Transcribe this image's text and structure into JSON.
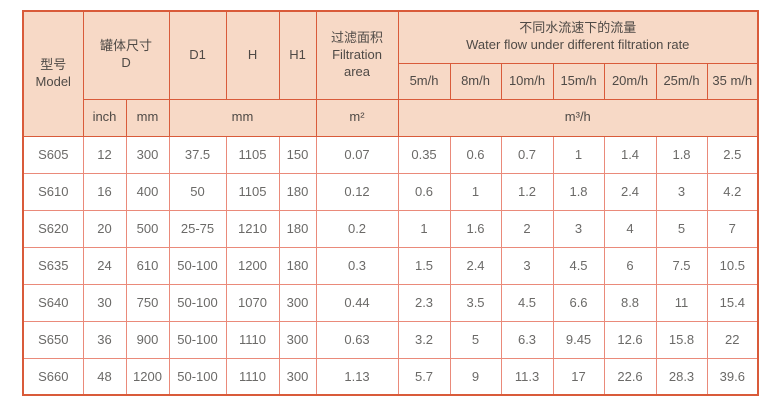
{
  "colors": {
    "page_bg": "#ffffff",
    "header_bg": "#f7d9c6",
    "strong_border": "#d95b3a",
    "light_border": "#ea8a7a",
    "header_text": "#4f4a46",
    "data_text": "#6b6a68"
  },
  "table": {
    "header": {
      "model_zh": "型号",
      "model_en": "Model",
      "tank_zh": "罐体尺寸",
      "tank_en": "D",
      "d1": "D1",
      "h": "H",
      "h1": "H1",
      "filtration_zh": "过滤面积",
      "filtration_en_line1": "Filtration",
      "filtration_en_line2": "area",
      "waterflow_zh": "不同水流速下的流量",
      "waterflow_en": "Water flow under different filtration rate",
      "rates": [
        "5m/h",
        "8m/h",
        "10m/h",
        "15m/h",
        "20m/h",
        "25m/h",
        "35 m/h"
      ],
      "unit_inch": "inch",
      "unit_mm_d": "mm",
      "unit_mm_dims": "mm",
      "unit_area": "m²",
      "unit_flow": "m³/h"
    },
    "rows": [
      {
        "model": "S605",
        "cells": [
          "12",
          "300",
          "37.5",
          "1105",
          "150",
          "0.07",
          "0.35",
          "0.6",
          "0.7",
          "1",
          "1.4",
          "1.8",
          "2.5"
        ]
      },
      {
        "model": "S610",
        "cells": [
          "16",
          "400",
          "50",
          "1105",
          "180",
          "0.12",
          "0.6",
          "1",
          "1.2",
          "1.8",
          "2.4",
          "3",
          "4.2"
        ]
      },
      {
        "model": "S620",
        "cells": [
          "20",
          "500",
          "25-75",
          "1210",
          "180",
          "0.2",
          "1",
          "1.6",
          "2",
          "3",
          "4",
          "5",
          "7"
        ]
      },
      {
        "model": "S635",
        "cells": [
          "24",
          "610",
          "50-100",
          "1200",
          "180",
          "0.3",
          "1.5",
          "2.4",
          "3",
          "4.5",
          "6",
          "7.5",
          "10.5"
        ]
      },
      {
        "model": "S640",
        "cells": [
          "30",
          "750",
          "50-100",
          "1070",
          "300",
          "0.44",
          "2.3",
          "3.5",
          "4.5",
          "6.6",
          "8.8",
          "11",
          "15.4"
        ]
      },
      {
        "model": "S650",
        "cells": [
          "36",
          "900",
          "50-100",
          "1110",
          "300",
          "0.63",
          "3.2",
          "5",
          "6.3",
          "9.45",
          "12.6",
          "15.8",
          "22"
        ]
      },
      {
        "model": "S660",
        "cells": [
          "48",
          "1200",
          "50-100",
          "1110",
          "300",
          "1.13",
          "5.7",
          "9",
          "11.3",
          "17",
          "22.6",
          "28.3",
          "39.6"
        ]
      }
    ]
  }
}
